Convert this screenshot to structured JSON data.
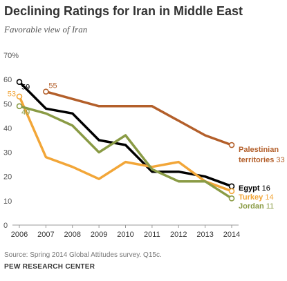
{
  "title": "Declining Ratings for Iran in Middle East",
  "subtitle": "Favorable view of Iran",
  "source": "Source: Spring 2014 Global Attitudes survey. Q15c.",
  "credit": "PEW RESEARCH CENTER",
  "chart_data": {
    "type": "line",
    "title": "Declining Ratings for Iran in Middle East",
    "subtitle": "Favorable view of Iran",
    "xlabel": "",
    "ylabel": "",
    "x": [
      2006,
      2007,
      2008,
      2009,
      2010,
      2011,
      2012,
      2013,
      2014
    ],
    "ylim": [
      0,
      70
    ],
    "y_ticks": [
      "0",
      "10",
      "20",
      "30",
      "40",
      "50",
      "60",
      "70%"
    ],
    "grid": false,
    "series": [
      {
        "name": "Palestinian territories",
        "color": "#b35f2a",
        "values": [
          null,
          55,
          52,
          49,
          49,
          49,
          43,
          37,
          33
        ],
        "label_lines": [
          "Palestinian",
          "territories"
        ],
        "end_value": "33",
        "start_value": "55"
      },
      {
        "name": "Egypt",
        "color": "#000000",
        "values": [
          59,
          48,
          46,
          35,
          33,
          22,
          22,
          20,
          16
        ],
        "label_lines": [
          "Egypt"
        ],
        "end_value": "16",
        "start_value": "59"
      },
      {
        "name": "Turkey",
        "color": "#f2a638",
        "values": [
          53,
          28,
          24,
          19,
          26,
          24,
          26,
          18,
          14
        ],
        "label_lines": [
          "Turkey"
        ],
        "end_value": "14",
        "start_value": "53"
      },
      {
        "name": "Jordan",
        "color": "#8a9b45",
        "values": [
          49,
          46,
          41,
          30,
          37,
          23,
          18,
          18,
          11
        ],
        "label_lines": [
          "Jordan"
        ],
        "end_value": "11",
        "start_value": "49"
      }
    ]
  }
}
